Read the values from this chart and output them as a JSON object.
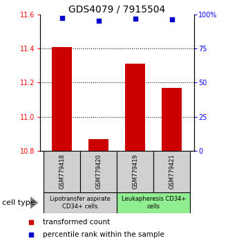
{
  "title": "GDS4079 / 7915504",
  "samples": [
    "GSM779418",
    "GSM779420",
    "GSM779419",
    "GSM779421"
  ],
  "bar_values": [
    11.41,
    10.87,
    11.31,
    11.17
  ],
  "percentile_values": [
    97.5,
    95.5,
    97.0,
    96.5
  ],
  "ylim_left": [
    10.8,
    11.6
  ],
  "ylim_right": [
    0,
    100
  ],
  "yticks_left": [
    10.8,
    11.0,
    11.2,
    11.4,
    11.6
  ],
  "yticks_right": [
    0,
    25,
    50,
    75,
    100
  ],
  "ytick_right_labels": [
    "0",
    "25",
    "50",
    "75",
    "100%"
  ],
  "grid_yticks": [
    11.0,
    11.2,
    11.4
  ],
  "bar_color": "#cc0000",
  "dot_color": "#0000cc",
  "sample_box_color": "#d0d0d0",
  "cell_type_groups": [
    {
      "label": "Lipotransfer aspirate\nCD34+ cells",
      "indices": [
        0,
        1
      ],
      "color": "#d0d0d0"
    },
    {
      "label": "Leukapheresis CD34+\ncells",
      "indices": [
        2,
        3
      ],
      "color": "#90ee90"
    }
  ],
  "cell_type_label": "cell type",
  "legend_bar_label": "transformed count",
  "legend_dot_label": "percentile rank within the sample",
  "title_fontsize": 10,
  "tick_fontsize": 7,
  "sample_fontsize": 6,
  "cell_fontsize": 6,
  "legend_fontsize": 7.5
}
